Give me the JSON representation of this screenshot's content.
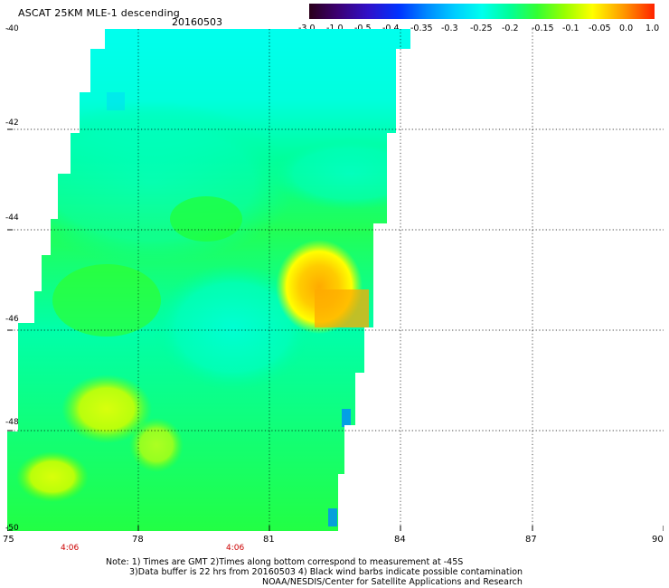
{
  "header": {
    "title": "ASCAT 25KM MLE-1 descending",
    "date": "20160503"
  },
  "colorbar": {
    "labels": [
      "-3.0",
      "-1.0",
      "-0.5",
      "-0.4",
      "-0.35",
      "-0.3",
      "-0.25",
      "-0.2",
      "-0.15",
      "-0.1",
      "-0.05",
      "0.0",
      "1.0"
    ],
    "colors": [
      "#2a001a",
      "#3c0070",
      "#3010c8",
      "#0033ff",
      "#0088ff",
      "#00ccff",
      "#00ffee",
      "#00ff99",
      "#33ff33",
      "#99ff00",
      "#ffff00",
      "#ff9900",
      "#ff2200"
    ]
  },
  "axes": {
    "lat_labels": [
      "-40",
      "-42",
      "-44",
      "-46",
      "-48",
      "-50"
    ],
    "lon_labels": [
      "75",
      "78",
      "81",
      "84",
      "87",
      "90"
    ],
    "lat_range": [
      -40,
      -50
    ],
    "lon_range": [
      75,
      90
    ],
    "grid": true
  },
  "time_labels": [
    "4:06",
    "4:06"
  ],
  "notes": [
    "Note: 1) Times are GMT 2)Times along bottom correspond to measurement at -45S",
    "3)Data buffer is 22 hrs from 20160503 4) Black wind barbs indicate possible contamination",
    "NOAA/NESDIS/Center for Satellite Applications and Research"
  ]
}
